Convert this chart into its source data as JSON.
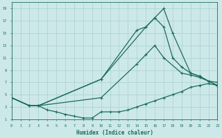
{
  "bg_color": "#cce8e8",
  "grid_color": "#aad0d0",
  "line_color": "#1a6b5a",
  "xlabel": "Humidex (Indice chaleur)",
  "xlim": [
    0,
    23
  ],
  "ylim": [
    1,
    20
  ],
  "xticks": [
    0,
    1,
    2,
    3,
    4,
    5,
    6,
    7,
    8,
    9,
    10,
    11,
    12,
    13,
    14,
    15,
    16,
    17,
    18,
    19,
    20,
    21,
    22,
    23
  ],
  "yticks": [
    1,
    3,
    5,
    7,
    9,
    11,
    13,
    15,
    17,
    19
  ],
  "line1_x": [
    0,
    2,
    3,
    10,
    15,
    16,
    17,
    18,
    20,
    21,
    22,
    23
  ],
  "line1_y": [
    4.5,
    3.2,
    3.2,
    7.5,
    16.0,
    17.5,
    19.0,
    15.0,
    8.5,
    8.0,
    7.2,
    6.5
  ],
  "line2_x": [
    0,
    2,
    3,
    10,
    14,
    15,
    16,
    17,
    18,
    19,
    20,
    21,
    22,
    23
  ],
  "line2_y": [
    4.5,
    3.2,
    3.2,
    7.5,
    15.5,
    16.0,
    17.5,
    16.0,
    11.0,
    9.5,
    8.5,
    8.0,
    7.2,
    6.5
  ],
  "line3_x": [
    0,
    2,
    3,
    10,
    14,
    15,
    16,
    17,
    19,
    20,
    21,
    22,
    23
  ],
  "line3_y": [
    4.5,
    3.2,
    3.2,
    4.5,
    10.0,
    11.5,
    13.0,
    11.0,
    8.5,
    8.2,
    7.8,
    7.2,
    7.0
  ],
  "line4_x": [
    0,
    2,
    3,
    4,
    5,
    6,
    7,
    8,
    9,
    10,
    11,
    12,
    13,
    14,
    15,
    16,
    17,
    18,
    19,
    20,
    21,
    22,
    23
  ],
  "line4_y": [
    4.5,
    3.2,
    3.2,
    2.5,
    2.2,
    1.8,
    1.5,
    1.2,
    1.2,
    2.2,
    2.2,
    2.2,
    2.5,
    3.0,
    3.5,
    4.0,
    4.5,
    5.0,
    5.5,
    6.2,
    6.5,
    6.8,
    6.5
  ],
  "figsize": [
    3.2,
    2.0
  ],
  "dpi": 100
}
